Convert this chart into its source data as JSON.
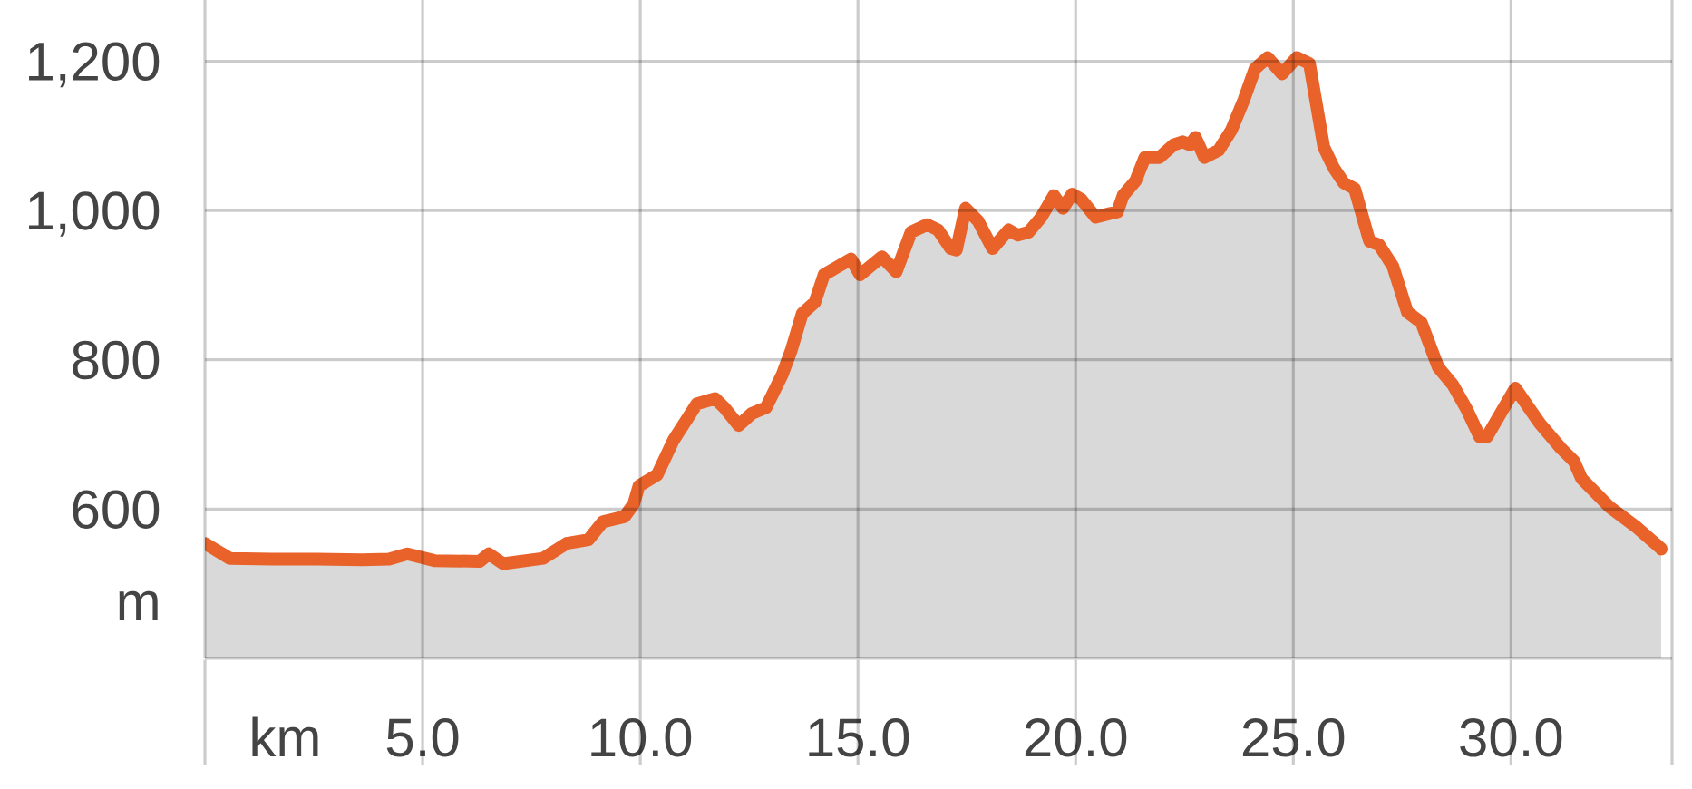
{
  "chart_data": {
    "type": "area",
    "xlabel": "km",
    "ylabel": "m",
    "color": "#d9d9d9",
    "grid": true,
    "xlim": [
      0,
      33.7
    ],
    "ylim": [
      400,
      1282
    ],
    "xticks": [
      {
        "value": 0,
        "label": null
      },
      {
        "value": 5,
        "label": "5.0"
      },
      {
        "value": 10,
        "label": "10.0"
      },
      {
        "value": 15,
        "label": "15.0"
      },
      {
        "value": 20,
        "label": "20.0"
      },
      {
        "value": 25,
        "label": "25.0"
      },
      {
        "value": 30,
        "label": "30.0"
      }
    ],
    "yticks": [
      600,
      800,
      {
        "value": 1000,
        "label": "1,000"
      },
      {
        "value": 1200,
        "label": "1,200"
      }
    ],
    "x": [
      0.0,
      0.57,
      1.53,
      2.57,
      3.61,
      4.23,
      4.65,
      5.27,
      6.31,
      6.52,
      6.85,
      7.77,
      8.31,
      8.81,
      9.14,
      9.64,
      9.85,
      9.97,
      10.39,
      10.76,
      11.3,
      11.72,
      11.93,
      12.26,
      12.56,
      12.89,
      13.26,
      13.47,
      13.72,
      14.01,
      14.22,
      14.51,
      14.84,
      15.05,
      15.55,
      15.88,
      16.22,
      16.59,
      16.84,
      17.13,
      17.26,
      17.47,
      17.76,
      18.09,
      18.46,
      18.67,
      18.92,
      19.21,
      19.5,
      19.71,
      19.92,
      20.13,
      20.46,
      20.79,
      20.96,
      21.09,
      21.38,
      21.59,
      21.92,
      22.25,
      22.46,
      22.62,
      22.75,
      22.96,
      23.29,
      23.58,
      23.87,
      24.12,
      24.41,
      24.74,
      25.08,
      25.37,
      25.7,
      25.93,
      26.16,
      26.41,
      26.75,
      26.97,
      27.29,
      27.62,
      27.94,
      28.33,
      28.66,
      28.98,
      29.28,
      29.45,
      30.1,
      30.66,
      31.14,
      31.45,
      31.62,
      32.26,
      32.9,
      33.45
    ],
    "values": [
      554,
      534,
      533,
      533,
      532,
      533,
      540,
      531,
      530,
      540,
      527,
      534,
      554,
      559,
      583,
      590,
      607,
      631,
      646,
      692,
      741,
      748,
      736,
      712,
      728,
      736,
      780,
      813,
      862,
      877,
      914,
      924,
      935,
      914,
      938,
      918,
      971,
      981,
      974,
      949,
      947,
      1003,
      986,
      949,
      974,
      967,
      971,
      991,
      1020,
      1003,
      1022,
      1015,
      991,
      996,
      998,
      1020,
      1040,
      1071,
      1071,
      1088,
      1092,
      1088,
      1098,
      1071,
      1081,
      1108,
      1149,
      1190,
      1205,
      1183,
      1205,
      1197,
      1085,
      1057,
      1037,
      1029,
      959,
      954,
      925,
      864,
      850,
      790,
      767,
      734,
      697,
      697,
      762,
      715,
      682,
      664,
      641,
      603,
      575,
      547
    ]
  }
}
